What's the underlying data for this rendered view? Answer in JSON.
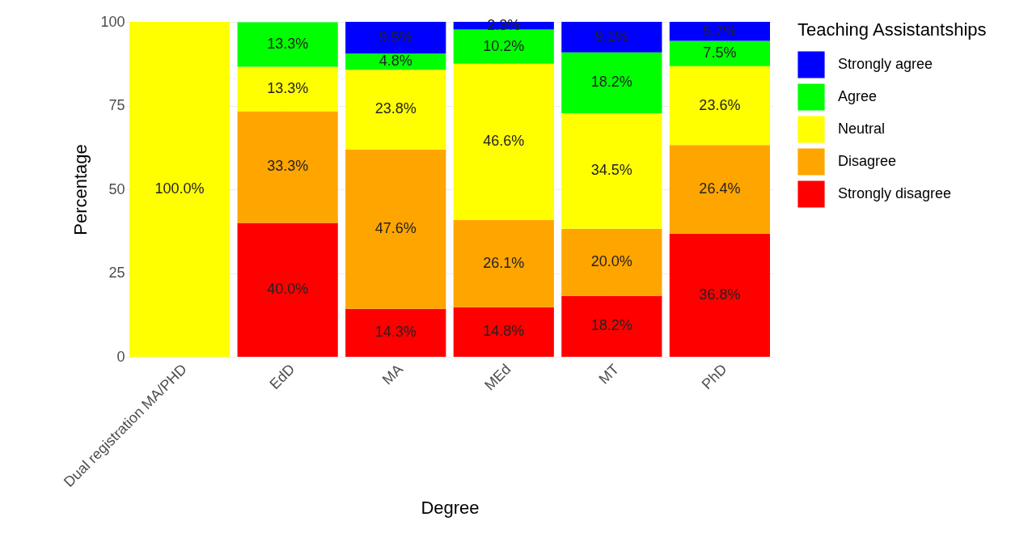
{
  "chart_data": {
    "type": "bar",
    "stacked": true,
    "xlabel": "Degree",
    "ylabel": "Percentage",
    "legend_title": "Teaching Assistantships",
    "legend": "right",
    "grid": true,
    "categories": [
      "Dual registration MA/PHD",
      "EdD",
      "MA",
      "MEd",
      "MT",
      "PhD"
    ],
    "ylim": [
      0,
      100
    ],
    "yticks": [
      0,
      25,
      50,
      75,
      100
    ],
    "series": [
      {
        "name": "Strongly disagree",
        "color": "#ff0000",
        "values": [
          null,
          40.0,
          14.3,
          14.8,
          18.2,
          36.8
        ],
        "value_labels": [
          null,
          "40.0%",
          "14.3%",
          "14.8%",
          "18.2%",
          "36.8%"
        ]
      },
      {
        "name": "Disagree",
        "color": "#ffa500",
        "values": [
          null,
          33.3,
          47.6,
          26.1,
          20.0,
          26.4
        ],
        "value_labels": [
          null,
          "33.3%",
          "47.6%",
          "26.1%",
          "20.0%",
          "26.4%"
        ]
      },
      {
        "name": "Neutral",
        "color": "#ffff00",
        "values": [
          100.0,
          13.3,
          23.8,
          46.6,
          34.5,
          23.6
        ],
        "value_labels": [
          "100.0%",
          "13.3%",
          "23.8%",
          "46.6%",
          "34.5%",
          "23.6%"
        ]
      },
      {
        "name": "Agree",
        "color": "#00ff00",
        "values": [
          null,
          13.3,
          4.8,
          10.2,
          18.2,
          7.5
        ],
        "value_labels": [
          null,
          "13.3%",
          "4.8%",
          "10.2%",
          "18.2%",
          "7.5%"
        ]
      },
      {
        "name": "Strongly agree",
        "color": "#0000ff",
        "values": [
          null,
          null,
          9.5,
          2.3,
          9.1,
          5.7
        ],
        "value_labels": [
          null,
          null,
          "9.5%",
          "2.3%",
          "9.1%",
          "5.7%"
        ]
      }
    ]
  }
}
